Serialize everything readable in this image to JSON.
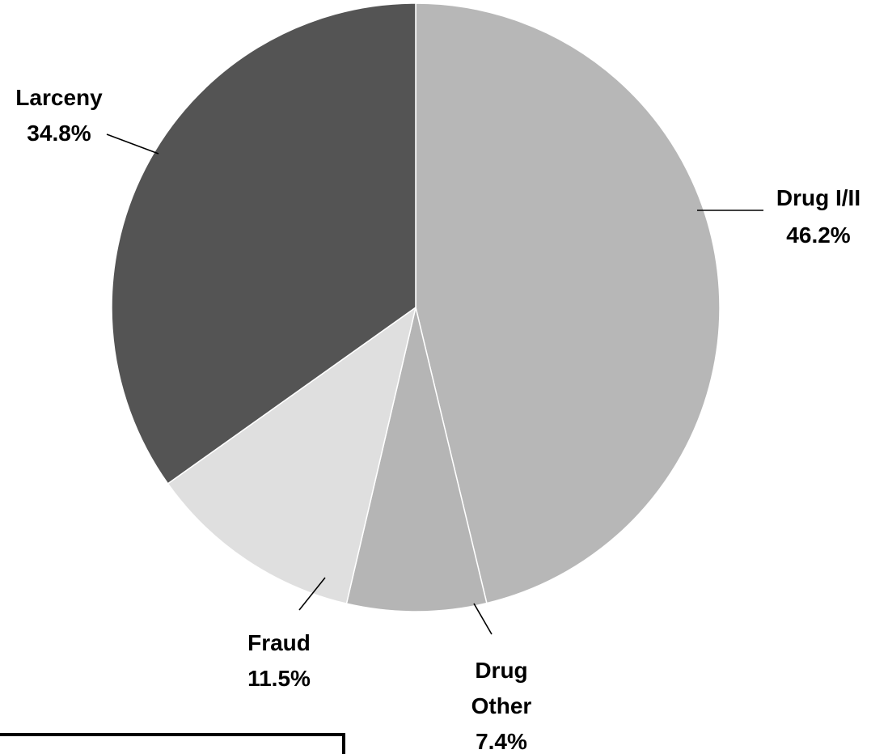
{
  "chart_data": {
    "type": "pie",
    "title": "",
    "slices": [
      {
        "name": "Drug I/II",
        "value": 46.2,
        "value_label": "46.2%",
        "color": "#b7b7b7"
      },
      {
        "name": "Drug Other",
        "value": 7.4,
        "value_label": "7.4%",
        "color": "#b5b5b5"
      },
      {
        "name": "Fraud",
        "value": 11.5,
        "value_label": "11.5%",
        "color": "#dfdfdf"
      },
      {
        "name": "Larceny",
        "value": 34.8,
        "value_label": "34.8%",
        "color": "#545454"
      }
    ],
    "start_angle_deg": 0,
    "direction": "clockwise",
    "legend": "none",
    "labels": "outside-with-leader-lines"
  }
}
